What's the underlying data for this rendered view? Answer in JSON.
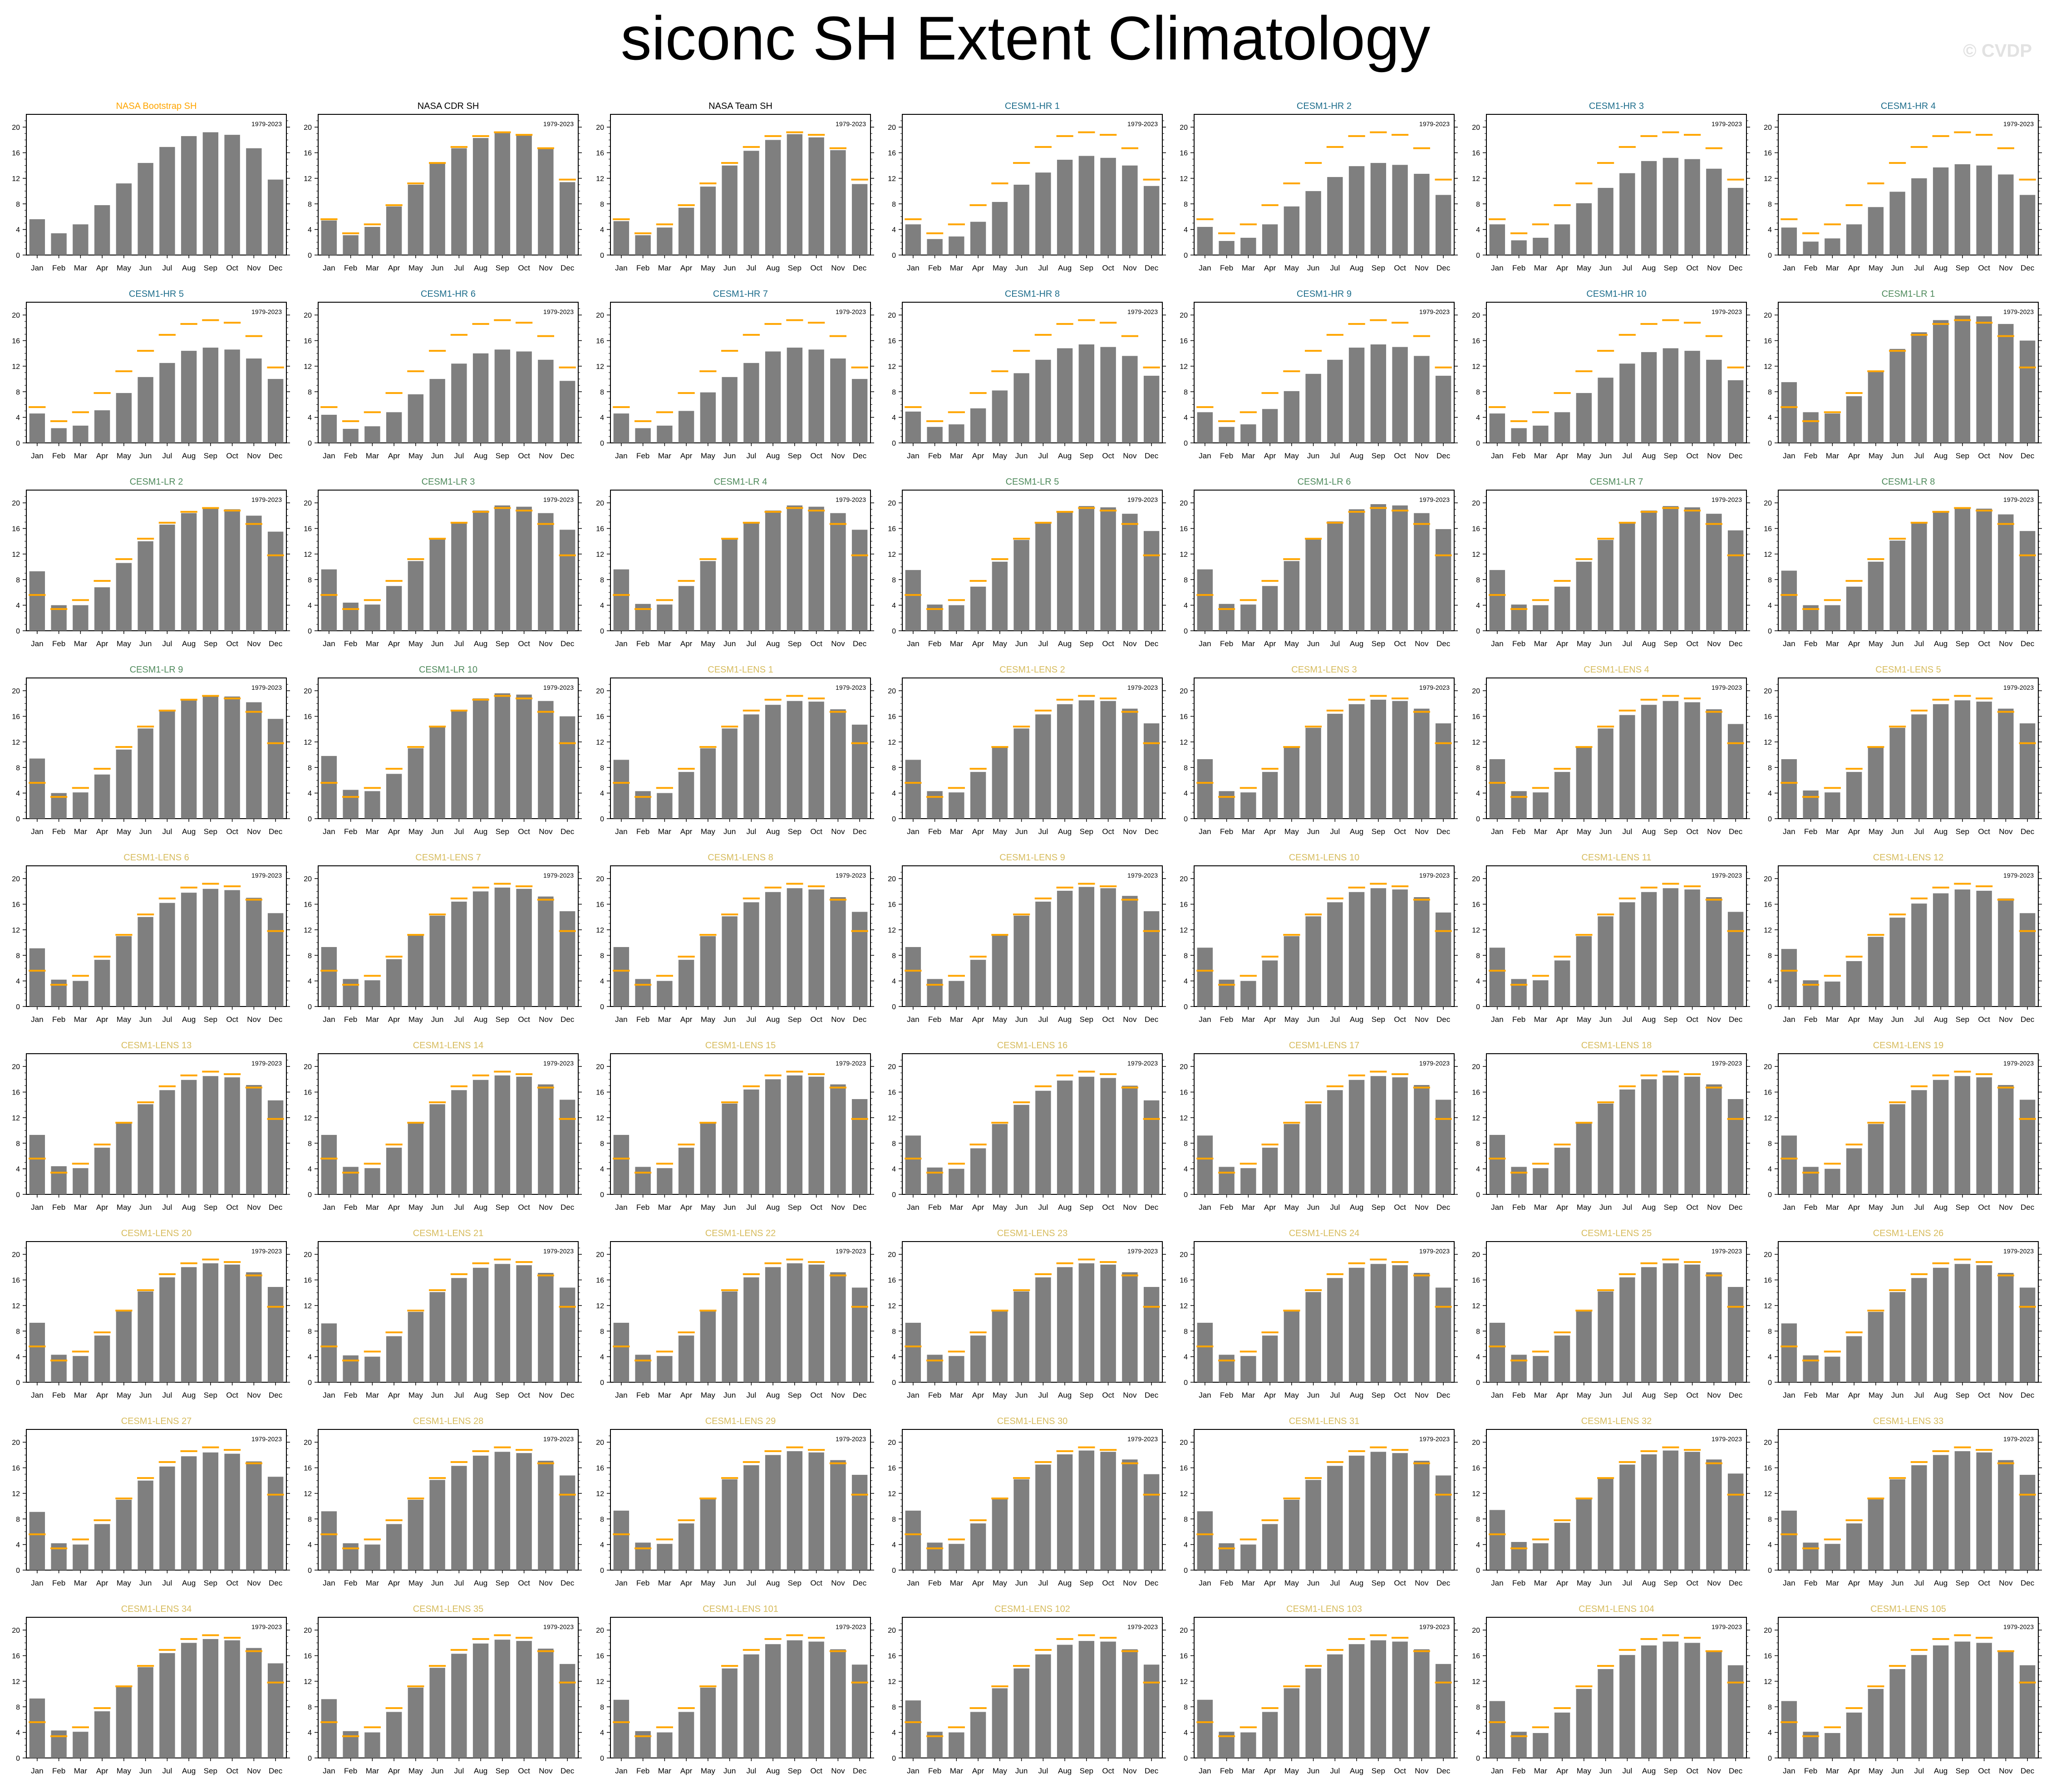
{
  "title": "siconc SH Extent Climatology",
  "watermark": "© CVDP",
  "period_label": "1979-2023",
  "months": [
    "Jan",
    "Feb",
    "Mar",
    "Apr",
    "May",
    "Jun",
    "Jul",
    "Aug",
    "Sep",
    "Oct",
    "Nov",
    "Dec"
  ],
  "y_ticks": [
    0,
    4,
    8,
    12,
    16,
    20
  ],
  "ylim": [
    0,
    22
  ],
  "colors": {
    "bar": "#7f7f7f",
    "obs_line": "#ffa500",
    "obs_title": "#ffa500",
    "obs_title_black": "#000000",
    "hr_title": "#1f6e8c",
    "lr_title": "#4f8a5c",
    "lens_title": "#d7bc5e"
  },
  "chart_data": {
    "type": "bar",
    "layout": {
      "rows": 9,
      "cols": 7
    },
    "reference_series": {
      "name": "NASA Bootstrap SH",
      "values": [
        5.6,
        3.4,
        4.8,
        7.8,
        11.2,
        14.4,
        16.9,
        18.6,
        19.2,
        18.8,
        16.7,
        11.8
      ]
    },
    "panels": [
      {
        "title": "NASA Bootstrap SH",
        "group": "obs",
        "values": [
          5.6,
          3.4,
          4.8,
          7.8,
          11.2,
          14.4,
          16.9,
          18.6,
          19.2,
          18.8,
          16.7,
          11.8
        ],
        "show_ref": false
      },
      {
        "title": "NASA CDR SH",
        "group": "obs_black",
        "values": [
          5.4,
          3.1,
          4.4,
          7.6,
          11.0,
          14.3,
          16.7,
          18.3,
          19.1,
          18.7,
          16.6,
          11.4
        ]
      },
      {
        "title": "NASA Team SH",
        "group": "obs_black",
        "values": [
          5.3,
          3.1,
          4.3,
          7.4,
          10.7,
          14.0,
          16.3,
          18.0,
          18.9,
          18.4,
          16.4,
          11.1
        ]
      },
      {
        "title": "CESM1-HR 1",
        "group": "hr",
        "values": [
          4.8,
          2.5,
          2.9,
          5.2,
          8.3,
          11.0,
          12.9,
          14.9,
          15.5,
          15.2,
          14.0,
          10.8
        ]
      },
      {
        "title": "CESM1-HR 2",
        "group": "hr",
        "values": [
          4.4,
          2.2,
          2.7,
          4.8,
          7.6,
          10.0,
          12.2,
          13.9,
          14.4,
          14.1,
          12.7,
          9.4
        ]
      },
      {
        "title": "CESM1-HR 3",
        "group": "hr",
        "values": [
          4.8,
          2.3,
          2.7,
          4.8,
          8.1,
          10.5,
          12.8,
          14.7,
          15.2,
          15.0,
          13.5,
          10.5
        ]
      },
      {
        "title": "CESM1-HR 4",
        "group": "hr",
        "values": [
          4.3,
          2.1,
          2.6,
          4.8,
          7.5,
          9.9,
          12.0,
          13.7,
          14.2,
          14.0,
          12.6,
          9.4
        ]
      },
      {
        "title": "CESM1-HR 5",
        "group": "hr",
        "values": [
          4.6,
          2.3,
          2.7,
          5.1,
          7.8,
          10.3,
          12.5,
          14.4,
          14.9,
          14.6,
          13.2,
          10.0
        ]
      },
      {
        "title": "CESM1-HR 6",
        "group": "hr",
        "values": [
          4.4,
          2.2,
          2.6,
          4.8,
          7.6,
          10.0,
          12.4,
          14.0,
          14.6,
          14.3,
          13.0,
          9.7
        ]
      },
      {
        "title": "CESM1-HR 7",
        "group": "hr",
        "values": [
          4.6,
          2.3,
          2.7,
          5.0,
          7.9,
          10.3,
          12.5,
          14.3,
          14.9,
          14.6,
          13.2,
          10.0
        ]
      },
      {
        "title": "CESM1-HR 8",
        "group": "hr",
        "values": [
          4.9,
          2.5,
          2.9,
          5.4,
          8.2,
          10.9,
          13.0,
          14.8,
          15.4,
          15.0,
          13.6,
          10.5
        ]
      },
      {
        "title": "CESM1-HR 9",
        "group": "hr",
        "values": [
          4.8,
          2.5,
          2.9,
          5.3,
          8.1,
          10.8,
          13.0,
          14.9,
          15.4,
          15.0,
          13.6,
          10.5
        ]
      },
      {
        "title": "CESM1-HR 10",
        "group": "hr",
        "values": [
          4.6,
          2.3,
          2.7,
          4.8,
          7.8,
          10.2,
          12.4,
          14.2,
          14.8,
          14.4,
          13.0,
          9.8
        ]
      },
      {
        "title": "CESM1-LR 1",
        "group": "lr",
        "values": [
          9.5,
          4.8,
          4.6,
          7.3,
          11.1,
          14.7,
          17.3,
          19.2,
          19.9,
          19.8,
          18.6,
          16.0
        ]
      },
      {
        "title": "CESM1-LR 2",
        "group": "lr",
        "values": [
          9.3,
          4.0,
          4.0,
          6.8,
          10.6,
          14.0,
          16.6,
          18.4,
          19.2,
          19.0,
          18.0,
          15.5
        ]
      },
      {
        "title": "CESM1-LR 3",
        "group": "lr",
        "values": [
          9.6,
          4.4,
          4.1,
          7.0,
          10.9,
          14.3,
          17.0,
          18.8,
          19.6,
          19.4,
          18.4,
          15.8
        ]
      },
      {
        "title": "CESM1-LR 4",
        "group": "lr",
        "values": [
          9.6,
          4.2,
          4.1,
          7.0,
          10.9,
          14.3,
          17.0,
          18.8,
          19.6,
          19.4,
          18.4,
          15.8
        ]
      },
      {
        "title": "CESM1-LR 5",
        "group": "lr",
        "values": [
          9.5,
          4.1,
          4.0,
          6.9,
          10.8,
          14.2,
          16.9,
          18.7,
          19.5,
          19.3,
          18.3,
          15.6
        ]
      },
      {
        "title": "CESM1-LR 6",
        "group": "lr",
        "values": [
          9.6,
          4.2,
          4.1,
          7.0,
          10.9,
          14.3,
          17.1,
          19.0,
          19.8,
          19.6,
          18.4,
          15.9
        ]
      },
      {
        "title": "CESM1-LR 7",
        "group": "lr",
        "values": [
          9.5,
          4.1,
          4.0,
          6.9,
          10.8,
          14.2,
          16.9,
          18.8,
          19.5,
          19.3,
          18.3,
          15.7
        ]
      },
      {
        "title": "CESM1-LR 8",
        "group": "lr",
        "values": [
          9.4,
          4.0,
          4.0,
          6.9,
          10.8,
          14.1,
          16.8,
          18.6,
          19.3,
          19.1,
          18.2,
          15.6
        ]
      },
      {
        "title": "CESM1-LR 9",
        "group": "lr",
        "values": [
          9.4,
          4.0,
          4.1,
          6.9,
          10.8,
          14.1,
          16.8,
          18.6,
          19.3,
          19.1,
          18.2,
          15.6
        ]
      },
      {
        "title": "CESM1-LR 10",
        "group": "lr",
        "values": [
          9.8,
          4.5,
          4.3,
          7.0,
          11.0,
          14.4,
          17.0,
          18.8,
          19.6,
          19.4,
          18.4,
          16.0
        ]
      },
      {
        "title": "CESM1-LENS 1",
        "group": "lens",
        "values": [
          9.2,
          4.3,
          4.0,
          7.3,
          11.0,
          14.1,
          16.3,
          17.8,
          18.4,
          18.3,
          17.1,
          14.7
        ]
      },
      {
        "title": "CESM1-LENS 2",
        "group": "lens",
        "values": [
          9.2,
          4.3,
          4.1,
          7.3,
          11.1,
          14.1,
          16.3,
          17.9,
          18.5,
          18.4,
          17.2,
          14.9
        ]
      },
      {
        "title": "CESM1-LENS 3",
        "group": "lens",
        "values": [
          9.3,
          4.3,
          4.1,
          7.3,
          11.1,
          14.2,
          16.4,
          17.9,
          18.6,
          18.4,
          17.2,
          14.9
        ]
      },
      {
        "title": "CESM1-LENS 4",
        "group": "lens",
        "values": [
          9.3,
          4.3,
          4.1,
          7.3,
          11.1,
          14.1,
          16.2,
          17.8,
          18.4,
          18.2,
          17.1,
          14.8
        ]
      },
      {
        "title": "CESM1-LENS 5",
        "group": "lens",
        "values": [
          9.3,
          4.4,
          4.1,
          7.3,
          11.1,
          14.2,
          16.3,
          17.9,
          18.5,
          18.3,
          17.2,
          14.9
        ]
      },
      {
        "title": "CESM1-LENS 6",
        "group": "lens",
        "values": [
          9.1,
          4.2,
          4.0,
          7.3,
          11.0,
          14.0,
          16.2,
          17.8,
          18.4,
          18.2,
          17.0,
          14.6
        ]
      },
      {
        "title": "CESM1-LENS 7",
        "group": "lens",
        "values": [
          9.3,
          4.3,
          4.1,
          7.4,
          11.1,
          14.2,
          16.4,
          18.0,
          18.6,
          18.4,
          17.2,
          14.9
        ]
      },
      {
        "title": "CESM1-LENS 8",
        "group": "lens",
        "values": [
          9.3,
          4.3,
          4.0,
          7.3,
          11.0,
          14.1,
          16.3,
          17.9,
          18.5,
          18.3,
          17.1,
          14.8
        ]
      },
      {
        "title": "CESM1-LENS 9",
        "group": "lens",
        "values": [
          9.3,
          4.3,
          4.0,
          7.3,
          11.1,
          14.2,
          16.4,
          18.1,
          18.7,
          18.5,
          17.3,
          14.9
        ]
      },
      {
        "title": "CESM1-LENS 10",
        "group": "lens",
        "values": [
          9.2,
          4.2,
          4.0,
          7.2,
          11.0,
          14.1,
          16.3,
          17.9,
          18.5,
          18.3,
          17.1,
          14.7
        ]
      },
      {
        "title": "CESM1-LENS 11",
        "group": "lens",
        "values": [
          9.2,
          4.3,
          4.1,
          7.2,
          11.0,
          14.1,
          16.3,
          17.9,
          18.5,
          18.3,
          17.1,
          14.8
        ]
      },
      {
        "title": "CESM1-LENS 12",
        "group": "lens",
        "values": [
          9.0,
          4.1,
          3.9,
          7.1,
          10.9,
          13.9,
          16.1,
          17.7,
          18.3,
          18.1,
          16.9,
          14.6
        ]
      },
      {
        "title": "CESM1-LENS 13",
        "group": "lens",
        "values": [
          9.3,
          4.4,
          4.1,
          7.3,
          11.1,
          14.1,
          16.3,
          17.9,
          18.5,
          18.3,
          17.1,
          14.7
        ]
      },
      {
        "title": "CESM1-LENS 14",
        "group": "lens",
        "values": [
          9.3,
          4.3,
          4.1,
          7.3,
          11.1,
          14.1,
          16.3,
          17.9,
          18.6,
          18.4,
          17.2,
          14.8
        ]
      },
      {
        "title": "CESM1-LENS 15",
        "group": "lens",
        "values": [
          9.3,
          4.3,
          4.1,
          7.3,
          11.1,
          14.2,
          16.4,
          18.0,
          18.6,
          18.4,
          17.2,
          14.9
        ]
      },
      {
        "title": "CESM1-LENS 16",
        "group": "lens",
        "values": [
          9.2,
          4.2,
          4.0,
          7.2,
          11.0,
          14.0,
          16.2,
          17.8,
          18.4,
          18.2,
          17.0,
          14.7
        ]
      },
      {
        "title": "CESM1-LENS 17",
        "group": "lens",
        "values": [
          9.2,
          4.3,
          4.1,
          7.3,
          11.0,
          14.1,
          16.3,
          17.9,
          18.5,
          18.3,
          17.1,
          14.8
        ]
      },
      {
        "title": "CESM1-LENS 18",
        "group": "lens",
        "values": [
          9.3,
          4.3,
          4.1,
          7.3,
          11.1,
          14.2,
          16.4,
          18.0,
          18.6,
          18.4,
          17.2,
          14.9
        ]
      },
      {
        "title": "CESM1-LENS 19",
        "group": "lens",
        "values": [
          9.2,
          4.3,
          4.0,
          7.2,
          11.0,
          14.1,
          16.3,
          17.9,
          18.5,
          18.3,
          17.1,
          14.8
        ]
      },
      {
        "title": "CESM1-LENS 20",
        "group": "lens",
        "values": [
          9.3,
          4.3,
          4.1,
          7.3,
          11.1,
          14.2,
          16.4,
          18.0,
          18.6,
          18.4,
          17.2,
          14.9
        ]
      },
      {
        "title": "CESM1-LENS 21",
        "group": "lens",
        "values": [
          9.2,
          4.2,
          4.0,
          7.2,
          11.0,
          14.1,
          16.3,
          17.9,
          18.5,
          18.3,
          17.1,
          14.8
        ]
      },
      {
        "title": "CESM1-LENS 22",
        "group": "lens",
        "values": [
          9.3,
          4.3,
          4.1,
          7.3,
          11.1,
          14.2,
          16.4,
          18.0,
          18.6,
          18.4,
          17.2,
          14.8
        ]
      },
      {
        "title": "CESM1-LENS 23",
        "group": "lens",
        "values": [
          9.3,
          4.3,
          4.1,
          7.3,
          11.1,
          14.2,
          16.4,
          18.0,
          18.6,
          18.4,
          17.2,
          14.9
        ]
      },
      {
        "title": "CESM1-LENS 24",
        "group": "lens",
        "values": [
          9.3,
          4.3,
          4.1,
          7.3,
          11.1,
          14.1,
          16.3,
          17.9,
          18.5,
          18.3,
          17.1,
          14.8
        ]
      },
      {
        "title": "CESM1-LENS 25",
        "group": "lens",
        "values": [
          9.3,
          4.3,
          4.1,
          7.3,
          11.1,
          14.2,
          16.4,
          18.0,
          18.6,
          18.4,
          17.2,
          14.9
        ]
      },
      {
        "title": "CESM1-LENS 26",
        "group": "lens",
        "values": [
          9.2,
          4.2,
          4.0,
          7.2,
          11.0,
          14.1,
          16.3,
          17.9,
          18.5,
          18.3,
          17.1,
          14.8
        ]
      },
      {
        "title": "CESM1-LENS 27",
        "group": "lens",
        "values": [
          9.1,
          4.2,
          4.0,
          7.2,
          11.0,
          14.0,
          16.2,
          17.8,
          18.4,
          18.2,
          17.0,
          14.6
        ]
      },
      {
        "title": "CESM1-LENS 28",
        "group": "lens",
        "values": [
          9.2,
          4.2,
          4.0,
          7.2,
          11.0,
          14.1,
          16.3,
          17.9,
          18.5,
          18.3,
          17.1,
          14.8
        ]
      },
      {
        "title": "CESM1-LENS 29",
        "group": "lens",
        "values": [
          9.3,
          4.3,
          4.1,
          7.3,
          11.1,
          14.2,
          16.4,
          18.0,
          18.6,
          18.4,
          17.2,
          14.9
        ]
      },
      {
        "title": "CESM1-LENS 30",
        "group": "lens",
        "values": [
          9.3,
          4.3,
          4.1,
          7.3,
          11.1,
          14.2,
          16.5,
          18.1,
          18.7,
          18.5,
          17.3,
          15.0
        ]
      },
      {
        "title": "CESM1-LENS 31",
        "group": "lens",
        "values": [
          9.2,
          4.2,
          4.0,
          7.2,
          11.0,
          14.1,
          16.3,
          17.9,
          18.5,
          18.3,
          17.1,
          14.8
        ]
      },
      {
        "title": "CESM1-LENS 32",
        "group": "lens",
        "values": [
          9.4,
          4.4,
          4.2,
          7.4,
          11.2,
          14.3,
          16.5,
          18.1,
          18.7,
          18.5,
          17.3,
          15.1
        ]
      },
      {
        "title": "CESM1-LENS 33",
        "group": "lens",
        "values": [
          9.3,
          4.3,
          4.1,
          7.3,
          11.1,
          14.2,
          16.4,
          18.0,
          18.6,
          18.4,
          17.2,
          14.9
        ]
      },
      {
        "title": "CESM1-LENS 34",
        "group": "lens",
        "values": [
          9.3,
          4.3,
          4.1,
          7.3,
          11.1,
          14.2,
          16.4,
          18.0,
          18.6,
          18.4,
          17.2,
          14.8
        ]
      },
      {
        "title": "CESM1-LENS 35",
        "group": "lens",
        "values": [
          9.2,
          4.2,
          4.0,
          7.2,
          11.0,
          14.1,
          16.3,
          17.9,
          18.5,
          18.3,
          17.1,
          14.7
        ]
      },
      {
        "title": "CESM1-LENS 101",
        "group": "lens",
        "values": [
          9.1,
          4.2,
          4.0,
          7.2,
          11.0,
          14.0,
          16.2,
          17.8,
          18.4,
          18.2,
          17.0,
          14.6
        ]
      },
      {
        "title": "CESM1-LENS 102",
        "group": "lens",
        "values": [
          9.0,
          4.1,
          4.0,
          7.2,
          10.9,
          14.0,
          16.2,
          17.7,
          18.3,
          18.2,
          17.0,
          14.6
        ]
      },
      {
        "title": "CESM1-LENS 103",
        "group": "lens",
        "values": [
          9.1,
          4.1,
          4.0,
          7.2,
          10.9,
          14.0,
          16.2,
          17.8,
          18.4,
          18.2,
          17.0,
          14.7
        ]
      },
      {
        "title": "CESM1-LENS 104",
        "group": "lens",
        "values": [
          8.9,
          4.1,
          3.9,
          7.1,
          10.8,
          13.9,
          16.1,
          17.6,
          18.2,
          18.0,
          16.8,
          14.5
        ]
      },
      {
        "title": "CESM1-LENS 105",
        "group": "lens",
        "values": [
          8.9,
          4.1,
          3.9,
          7.1,
          10.8,
          13.9,
          16.1,
          17.6,
          18.2,
          18.0,
          16.8,
          14.5
        ]
      }
    ]
  }
}
